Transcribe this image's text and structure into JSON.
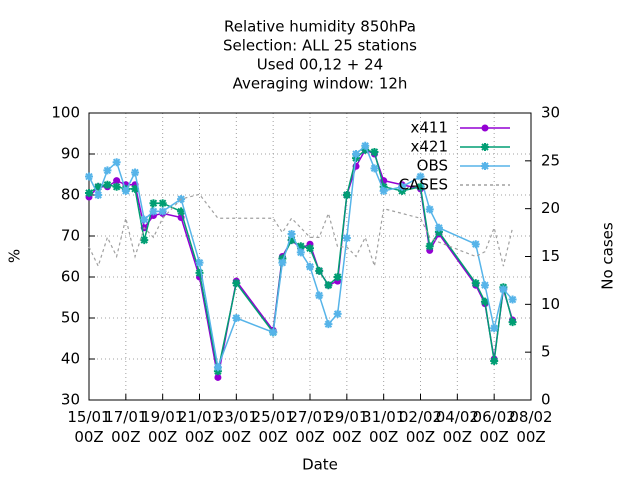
{
  "chart_data": {
    "type": "line",
    "title": [
      "Relative humidity 850hPa",
      "Selection: ALL      25 stations",
      "Used  00,12  + 24",
      "Averaging window: 12h"
    ],
    "xlabel": "Date",
    "ylabel": "%",
    "y2label": "No cases",
    "x": [
      "15/01 00Z",
      "15/01 12Z",
      "16/01 00Z",
      "16/01 12Z",
      "17/01 00Z",
      "17/01 12Z",
      "18/01 00Z",
      "18/01 12Z",
      "19/01 00Z",
      "20/01 00Z",
      "21/01 00Z",
      "22/01 00Z",
      "23/01 00Z",
      "25/01 00Z",
      "25/01 12Z",
      "26/01 00Z",
      "26/01 12Z",
      "27/01 00Z",
      "27/01 12Z",
      "28/01 00Z",
      "28/01 12Z",
      "29/01 00Z",
      "29/01 12Z",
      "30/01 00Z",
      "30/01 12Z",
      "31/01 00Z",
      "01/02 00Z",
      "02/02 00Z",
      "02/02 12Z",
      "03/02 00Z",
      "05/02 00Z",
      "05/02 12Z",
      "06/02 00Z",
      "06/02 12Z",
      "07/02 00Z"
    ],
    "series": [
      {
        "name": "x411",
        "color": "#9400d3",
        "marker": "circle",
        "values": [
          79.5,
          82,
          82,
          83.5,
          82.5,
          82.5,
          72,
          75,
          75.5,
          74.5,
          60,
          35.5,
          59,
          47,
          65,
          69,
          67,
          68,
          61.5,
          58,
          59,
          80,
          87,
          91,
          90,
          83.5,
          82.5,
          81.5,
          66.5,
          70.5,
          58,
          53.5,
          40,
          57,
          49.5
        ]
      },
      {
        "name": "x421",
        "color": "#009e73",
        "marker": "star",
        "values": [
          80.5,
          82,
          82.5,
          82,
          81.5,
          81.5,
          69,
          78,
          78,
          76,
          61,
          37,
          58.5,
          46.5,
          64.5,
          69,
          67.5,
          67,
          61.5,
          58,
          60,
          80,
          89,
          91,
          90.5,
          82,
          81,
          82,
          67.5,
          71,
          58.5,
          54,
          39.5,
          57.5,
          49
        ]
      },
      {
        "name": "OBS",
        "color": "#56b4e9",
        "marker": "star",
        "values": [
          84.5,
          80,
          86,
          88,
          81,
          85.5,
          74,
          76,
          76,
          79,
          63.5,
          38,
          50,
          46.5,
          63.5,
          70.5,
          66,
          62.5,
          55.5,
          48.5,
          51,
          69.5,
          90,
          92,
          86.5,
          81,
          82,
          84.5,
          76.5,
          72,
          68,
          58,
          47.5,
          57,
          54.5
        ]
      },
      {
        "name": "CASES",
        "color": "#a0a0a0",
        "dashed": true,
        "axis": "y2",
        "values": [
          16,
          14,
          17,
          15,
          19,
          15,
          18,
          17,
          19,
          21,
          21.5,
          19,
          19,
          19,
          17.5,
          19,
          18,
          17,
          17,
          19.5,
          16,
          16,
          15,
          17,
          14,
          20,
          19.5,
          19,
          17,
          16.5,
          15,
          15.5,
          18,
          14,
          18
        ]
      }
    ],
    "xlim": [
      "15/01 00Z",
      "08/02 00Z"
    ],
    "xticks": [
      "15/01 00Z",
      "17/01 00Z",
      "19/01 00Z",
      "21/01 00Z",
      "23/01 00Z",
      "25/01 00Z",
      "27/01 00Z",
      "29/01 00Z",
      "31/01 00Z",
      "02/02 00Z",
      "04/02 00Z",
      "06/02 00Z",
      "08/02 00Z"
    ],
    "ylim": [
      30,
      100
    ],
    "yticks": [
      30,
      40,
      50,
      60,
      70,
      80,
      90,
      100
    ],
    "y2lim": [
      0,
      30
    ],
    "y2ticks": [
      0,
      5,
      10,
      15,
      20,
      25,
      30
    ],
    "grid": true,
    "legend": "top-right"
  }
}
